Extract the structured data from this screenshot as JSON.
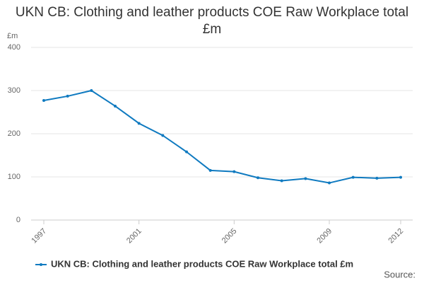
{
  "chart_data": {
    "type": "line",
    "title": "UKN CB: Clothing and leather products COE Raw Workplace total £m",
    "ylabel": "£m",
    "source": "Source:",
    "x": [
      1997,
      1998,
      1999,
      2000,
      2001,
      2002,
      2003,
      2004,
      2005,
      2006,
      2007,
      2008,
      2009,
      2010,
      2011,
      2012
    ],
    "series": [
      {
        "name": "UKN CB: Clothing and leather products COE Raw Workplace total £m",
        "color": "#0f7ac0",
        "values": [
          277,
          287,
          300,
          264,
          224,
          196,
          158,
          115,
          112,
          98,
          91,
          96,
          86,
          99,
          97,
          99
        ]
      }
    ],
    "xlim": [
      1997,
      2012
    ],
    "xticks": [
      1997,
      2001,
      2005,
      2009,
      2012
    ],
    "ylim": [
      0,
      400
    ],
    "yticks": [
      0,
      100,
      200,
      300,
      400
    ],
    "grid": true
  }
}
